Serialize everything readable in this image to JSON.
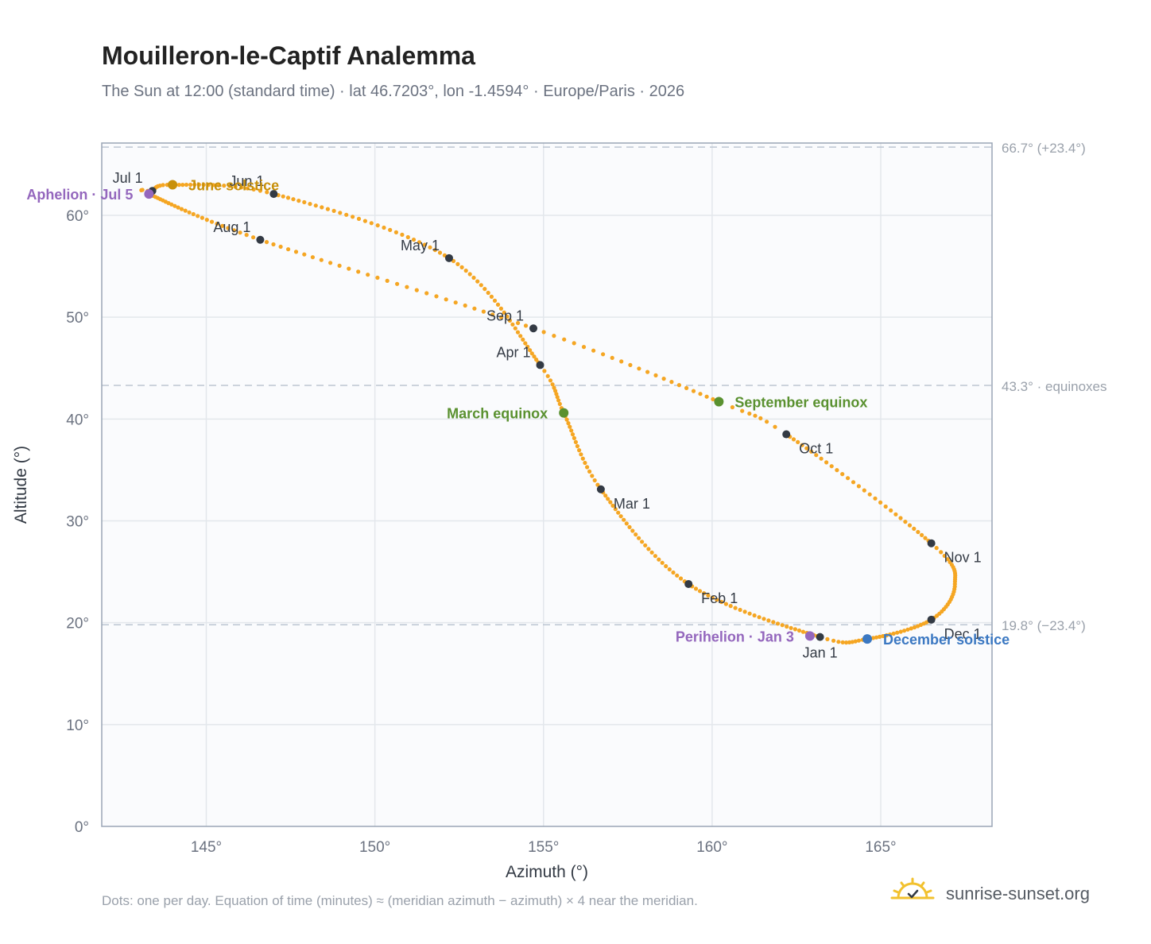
{
  "header": {
    "title": "Mouilleron-le-Captif Analemma",
    "subtitle": "The Sun at 12:00 (standard time) · lat 46.7203°, lon -1.4594° · Europe/Paris · 2026"
  },
  "footnote": "Dots: one per day. Equation of time (minutes) ≈ (meridian azimuth − azimuth) × 4 near the meridian.",
  "brand": {
    "name": "sunrise-sunset.org",
    "icon": "sun-logo-icon"
  },
  "colors": {
    "path": "#f5a623",
    "month_marker": "#333a44",
    "june_solstice": "#c8900a",
    "december_solstice": "#3b78c2",
    "march_equinox": "#5a9130",
    "september_equinox": "#5a9130",
    "perihelion": "#9467bd",
    "aphelion": "#9467bd",
    "plot_bg": "#fafbfd",
    "grid": "#e3e7ec",
    "axis_frame": "#9aa5b5",
    "reference_lines": "#bcc6d2"
  },
  "chart_data": {
    "type": "scatter",
    "xlabel": "Azimuth (°)",
    "ylabel": "Altitude (°)",
    "xlim": [
      141.9,
      168.3
    ],
    "ylim": [
      0,
      67.1
    ],
    "x_ticks": [
      {
        "value": 145,
        "label": "145°"
      },
      {
        "value": 150,
        "label": "150°"
      },
      {
        "value": 155,
        "label": "155°"
      },
      {
        "value": 160,
        "label": "160°"
      },
      {
        "value": 165,
        "label": "165°"
      }
    ],
    "y_ticks": [
      {
        "value": 0,
        "label": "0°"
      },
      {
        "value": 10,
        "label": "10°"
      },
      {
        "value": 20,
        "label": "20°"
      },
      {
        "value": 30,
        "label": "30°"
      },
      {
        "value": 40,
        "label": "40°"
      },
      {
        "value": 50,
        "label": "50°"
      },
      {
        "value": 60,
        "label": "60°"
      }
    ],
    "grid": true,
    "reference_lines": [
      {
        "altitude": 66.7,
        "label": "66.7° (+23.4°)"
      },
      {
        "altitude": 43.3,
        "label": "43.3° · equinoxes"
      },
      {
        "altitude": 19.8,
        "label": "19.8° (−23.4°)"
      }
    ],
    "path_keypoints": [
      {
        "day": 1,
        "x": 163.2,
        "y": 18.6
      },
      {
        "day": 32,
        "x": 159.3,
        "y": 23.8
      },
      {
        "day": 60,
        "x": 156.7,
        "y": 33.1
      },
      {
        "day": 79,
        "x": 155.6,
        "y": 40.6
      },
      {
        "day": 91,
        "x": 154.9,
        "y": 45.3
      },
      {
        "day": 121,
        "x": 152.2,
        "y": 55.8
      },
      {
        "day": 152,
        "x": 147.0,
        "y": 62.1
      },
      {
        "day": 172,
        "x": 144.0,
        "y": 63.0
      },
      {
        "day": 182,
        "x": 143.4,
        "y": 62.4
      },
      {
        "day": 186,
        "x": 143.3,
        "y": 62.1
      },
      {
        "day": 213,
        "x": 146.6,
        "y": 57.6
      },
      {
        "day": 244,
        "x": 154.7,
        "y": 48.9
      },
      {
        "day": 266,
        "x": 160.2,
        "y": 41.7
      },
      {
        "day": 274,
        "x": 162.2,
        "y": 38.5
      },
      {
        "day": 305,
        "x": 166.5,
        "y": 27.8
      },
      {
        "day": 320,
        "x": 167.2,
        "y": 23.8
      },
      {
        "day": 335,
        "x": 166.5,
        "y": 20.3
      },
      {
        "day": 355,
        "x": 164.6,
        "y": 18.4
      },
      {
        "day": 366,
        "x": 163.2,
        "y": 18.6
      }
    ],
    "month_markers": [
      {
        "label": "Jan 1",
        "x": 163.2,
        "y": 18.6,
        "anchor": "below"
      },
      {
        "label": "Feb 1",
        "x": 159.3,
        "y": 23.8,
        "anchor": "below-right"
      },
      {
        "label": "Mar 1",
        "x": 156.7,
        "y": 33.1,
        "anchor": "below-right"
      },
      {
        "label": "Apr 1",
        "x": 154.9,
        "y": 45.3,
        "anchor": "above-left"
      },
      {
        "label": "May 1",
        "x": 152.2,
        "y": 55.8,
        "anchor": "above-left"
      },
      {
        "label": "Jun 1",
        "x": 147.0,
        "y": 62.1,
        "anchor": "above-left"
      },
      {
        "label": "Jul 1",
        "x": 143.4,
        "y": 62.4,
        "anchor": "above-left"
      },
      {
        "label": "Aug 1",
        "x": 146.6,
        "y": 57.6,
        "anchor": "above-left"
      },
      {
        "label": "Sep 1",
        "x": 154.7,
        "y": 48.9,
        "anchor": "above-left"
      },
      {
        "label": "Oct 1",
        "x": 162.2,
        "y": 38.5,
        "anchor": "below-right"
      },
      {
        "label": "Nov 1",
        "x": 166.5,
        "y": 27.8,
        "anchor": "below-right"
      },
      {
        "label": "Dec 1",
        "x": 166.5,
        "y": 20.3,
        "anchor": "below-right"
      }
    ],
    "events": [
      {
        "label": "June solstice",
        "x": 144.0,
        "y": 63.0,
        "color": "#c8900a",
        "side": "right"
      },
      {
        "label": "December solstice",
        "x": 164.6,
        "y": 18.4,
        "color": "#3b78c2",
        "side": "right"
      },
      {
        "label": "March equinox",
        "x": 155.6,
        "y": 40.6,
        "color": "#5a9130",
        "side": "left"
      },
      {
        "label": "September equinox",
        "x": 160.2,
        "y": 41.7,
        "color": "#5a9130",
        "side": "right"
      },
      {
        "label": "Perihelion · Jan 3",
        "x": 162.9,
        "y": 18.7,
        "color": "#9467bd",
        "side": "left"
      },
      {
        "label": "Aphelion · Jul 5",
        "x": 143.3,
        "y": 62.1,
        "color": "#9467bd",
        "side": "left"
      }
    ]
  }
}
